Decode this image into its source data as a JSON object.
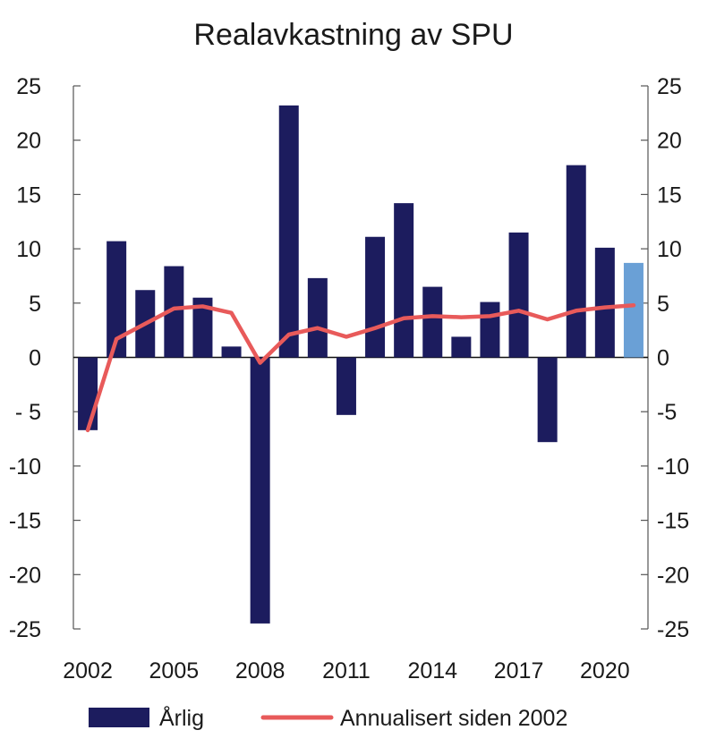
{
  "chart_data": {
    "type": "bar",
    "title": "Realavkastning av SPU",
    "xlabel": "",
    "ylabel": "",
    "ylim": [
      -25,
      25
    ],
    "y_ticks": [
      25,
      20,
      15,
      10,
      5,
      0,
      -5,
      -10,
      -15,
      -20,
      -25
    ],
    "y_tick_labels": [
      "25",
      "20",
      "15",
      "10",
      "5",
      "0",
      "- 5",
      "-10",
      "-15",
      "-20",
      "-25"
    ],
    "y_tick_labels_right": [
      "25",
      "20",
      "15",
      "10",
      "5",
      "0",
      "-5",
      "-10",
      "-15",
      "-20",
      "-25"
    ],
    "x_tick_labels": [
      "2002",
      "2005",
      "2008",
      "2011",
      "2014",
      "2017",
      "2020"
    ],
    "x": [
      2002,
      2003,
      2004,
      2005,
      2006,
      2007,
      2008,
      2009,
      2010,
      2011,
      2012,
      2013,
      2014,
      2015,
      2016,
      2017,
      2018,
      2019,
      2020,
      2021
    ],
    "grid": false,
    "legend_position": "bottom",
    "series": [
      {
        "name": "Årlig",
        "type": "bar",
        "color": "#1c1c5e",
        "highlight_color": "#6aa0d6",
        "highlight_index": 19,
        "values": [
          -6.7,
          10.7,
          6.2,
          8.4,
          5.5,
          1.0,
          -24.5,
          23.2,
          7.3,
          -5.3,
          11.1,
          14.2,
          6.5,
          1.9,
          5.1,
          11.5,
          -7.8,
          17.7,
          10.1,
          8.7
        ]
      },
      {
        "name": "Annualisert siden 2002",
        "type": "line",
        "color": "#e85a5a",
        "values": [
          -6.7,
          1.7,
          3.1,
          4.5,
          4.7,
          4.1,
          -0.5,
          2.1,
          2.7,
          1.9,
          2.7,
          3.6,
          3.8,
          3.7,
          3.8,
          4.3,
          3.5,
          4.3,
          4.6,
          4.8
        ]
      }
    ]
  }
}
